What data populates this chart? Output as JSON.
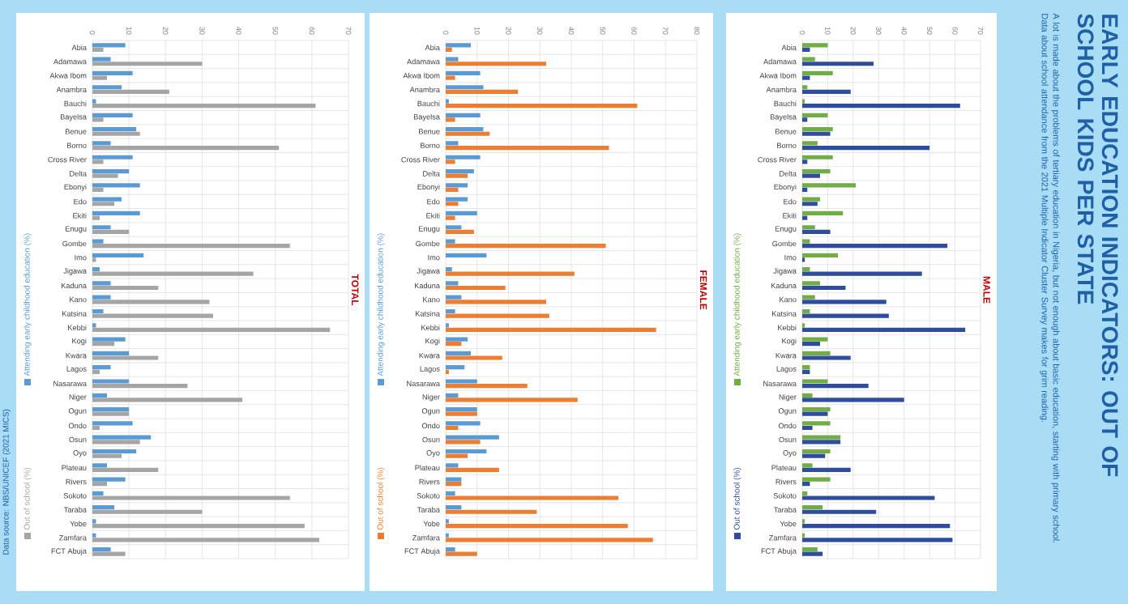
{
  "chart_data": [
    {
      "type": "bar",
      "orientation": "horizontal",
      "title": "TOTAL",
      "annotations": [
        "Data source: NBS/UNICEF (2021 MICS)"
      ],
      "grid": true,
      "legend": "left",
      "xlim": [
        0,
        70
      ],
      "xticks": [
        0,
        10,
        20,
        30,
        40,
        50,
        60,
        70
      ],
      "categories": [
        "Abia",
        "Adamawa",
        "Akwa Ibom",
        "Anambra",
        "Bauchi",
        "Bayelsa",
        "Benue",
        "Borno",
        "Cross River",
        "Delta",
        "Ebonyi",
        "Edo",
        "Ekiti",
        "Enugu",
        "Gombe",
        "Imo",
        "Jigawa",
        "Kaduna",
        "Kano",
        "Katsina",
        "Kebbi",
        "Kogi",
        "Kwara",
        "Lagos",
        "Nasarawa",
        "Niger",
        "Ogun",
        "Ondo",
        "Osun",
        "Oyo",
        "Plateau",
        "Rivers",
        "Sokoto",
        "Taraba",
        "Yobe",
        "Zamfara",
        "FCT Abuja"
      ],
      "series": [
        {
          "name": "Attending early childhood education (%)",
          "color": "#5b9bd5",
          "values": [
            9,
            5,
            11,
            8,
            1,
            11,
            12,
            5,
            11,
            10,
            13,
            8,
            13,
            5,
            3,
            14,
            2,
            5,
            5,
            3,
            1,
            9,
            10,
            5,
            10,
            4,
            10,
            11,
            16,
            12,
            4,
            9,
            3,
            6,
            1,
            1,
            5
          ]
        },
        {
          "name": "Out of school (%)",
          "color": "#a5a5a5",
          "values": [
            3,
            30,
            4,
            21,
            61,
            3,
            13,
            51,
            3,
            7,
            3,
            6,
            2,
            10,
            54,
            1,
            44,
            18,
            32,
            33,
            65,
            6,
            18,
            2,
            26,
            41,
            10,
            2,
            13,
            8,
            18,
            4,
            54,
            30,
            58,
            62,
            9
          ]
        }
      ]
    },
    {
      "type": "bar",
      "orientation": "horizontal",
      "title": "FEMALE",
      "grid": true,
      "legend": "left",
      "xlim": [
        0,
        80
      ],
      "xticks": [
        0,
        10,
        20,
        30,
        40,
        50,
        60,
        70,
        80
      ],
      "categories": [
        "Abia",
        "Adamawa",
        "Akwa Ibom",
        "Anambra",
        "Bauchi",
        "Bayelsa",
        "Benue",
        "Borno",
        "Cross River",
        "Delta",
        "Ebonyi",
        "Edo",
        "Ekiti",
        "Enugu",
        "Gombe",
        "Imo",
        "Jigawa",
        "Kaduna",
        "Kano",
        "Katsina",
        "Kebbi",
        "Kogi",
        "Kwara",
        "Lagos",
        "Nasarawa",
        "Niger",
        "Ogun",
        "Ondo",
        "Osun",
        "Oyo",
        "Plateau",
        "Rivers",
        "Sokoto",
        "Taraba",
        "Yobe",
        "Zamfara",
        "FCT Abuja"
      ],
      "series": [
        {
          "name": "Attending early childhood education (%)",
          "color": "#5b9bd5",
          "values": [
            8,
            4,
            11,
            12,
            1,
            11,
            12,
            4,
            11,
            9,
            7,
            7,
            10,
            5,
            3,
            13,
            2,
            4,
            5,
            3,
            1,
            7,
            8,
            6,
            10,
            4,
            10,
            11,
            17,
            13,
            4,
            5,
            3,
            5,
            1,
            1,
            3
          ]
        },
        {
          "name": "Out of school (%)",
          "color": "#ed7d31",
          "values": [
            2,
            32,
            3,
            23,
            61,
            3,
            14,
            52,
            3,
            7,
            4,
            4,
            3,
            9,
            51,
            0,
            41,
            19,
            32,
            33,
            67,
            5,
            18,
            1,
            26,
            42,
            10,
            4,
            11,
            7,
            17,
            5,
            55,
            29,
            58,
            66,
            10
          ]
        }
      ]
    },
    {
      "type": "bar",
      "orientation": "horizontal",
      "title": "MALE",
      "grid": true,
      "legend": "left",
      "xlim": [
        0,
        70
      ],
      "xticks": [
        0,
        10,
        20,
        30,
        40,
        50,
        60,
        70
      ],
      "categories": [
        "Abia",
        "Adamawa",
        "Akwa Ibom",
        "Anambra",
        "Bauchi",
        "Bayelsa",
        "Benue",
        "Borno",
        "Cross River",
        "Delta",
        "Ebonyi",
        "Edo",
        "Ekiti",
        "Enugu",
        "Gombe",
        "Imo",
        "Jigawa",
        "Kaduna",
        "Kano",
        "Katsina",
        "Kebbi",
        "Kogi",
        "Kwara",
        "Lagos",
        "Nasarawa",
        "Niger",
        "Ogun",
        "Ondo",
        "Osun",
        "Oyo",
        "Plateau",
        "Rivers",
        "Sokoto",
        "Taraba",
        "Yobe",
        "Zamfara",
        "FCT Abuja"
      ],
      "series": [
        {
          "name": "Attending early childhood education (%)",
          "color": "#70ad47",
          "values": [
            10,
            5,
            12,
            2,
            1,
            10,
            12,
            6,
            12,
            11,
            21,
            7,
            16,
            5,
            3,
            14,
            3,
            7,
            5,
            3,
            1,
            10,
            11,
            3,
            10,
            4,
            11,
            11,
            15,
            11,
            4,
            11,
            2,
            8,
            1,
            1,
            6
          ]
        },
        {
          "name": "Out of school (%)",
          "color": "#2f4d9e",
          "values": [
            3,
            28,
            3,
            19,
            62,
            2,
            11,
            50,
            2,
            7,
            2,
            6,
            2,
            11,
            57,
            1,
            47,
            17,
            33,
            34,
            64,
            7,
            19,
            3,
            26,
            40,
            10,
            4,
            15,
            9,
            19,
            3,
            52,
            29,
            58,
            59,
            8
          ]
        }
      ]
    },
    {
      "type": "other",
      "title": "EARLY EDUCATION INDICATORS: OUT OF SCHOOL KIDS PER STATE",
      "subtitle": "A lot is made about the problems of tertiary education in Nigeria, but not enough about basic education, starting with primary school. Data about school attendance from the 2021 Multiple Indicator Cluster Survey makes for grim reading."
    }
  ]
}
